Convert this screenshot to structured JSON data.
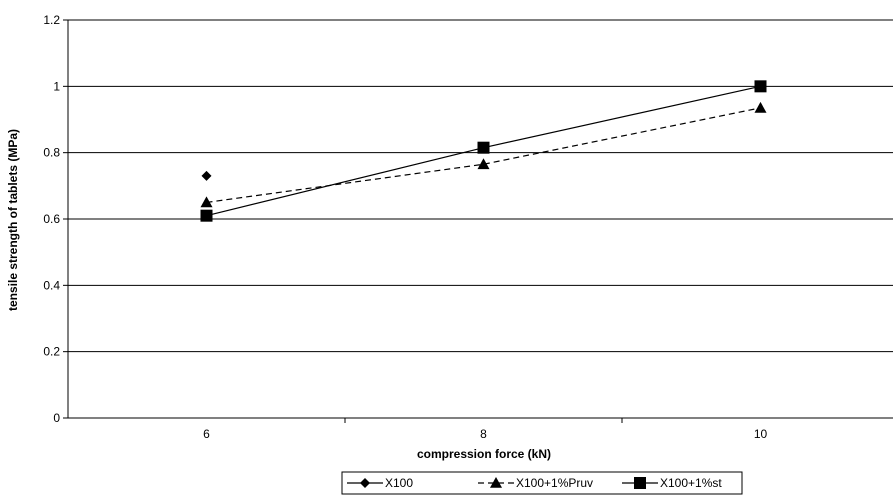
{
  "chart_data": {
    "type": "line",
    "title": "",
    "xlabel": "compression force (kN)",
    "ylabel": "tensile strength of tablets (MPa)",
    "categories": [
      "6",
      "8",
      "10"
    ],
    "ylim": [
      0,
      1.2
    ],
    "yticks": [
      "0",
      "0.2",
      "0.4",
      "0.6",
      "0.8",
      "1",
      "1.2"
    ],
    "grid": true,
    "legend_position": "bottom",
    "series": [
      {
        "name": "X100",
        "marker": "diamond",
        "line": "solid",
        "values": [
          0.73,
          null,
          null
        ]
      },
      {
        "name": "X100+1%Pruv",
        "marker": "triangle",
        "line": "dashed",
        "values": [
          0.65,
          0.765,
          0.935
        ]
      },
      {
        "name": "X100+1%st",
        "marker": "square",
        "line": "solid",
        "values": [
          0.61,
          0.815,
          1.0
        ]
      }
    ]
  }
}
